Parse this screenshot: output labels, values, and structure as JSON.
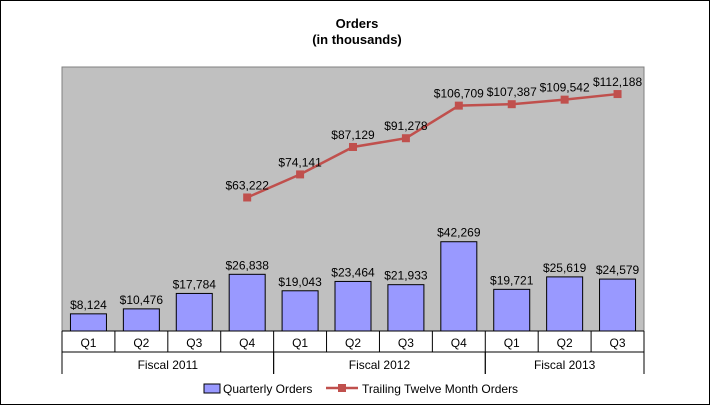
{
  "chart_data": {
    "type": "bar",
    "title": "Orders",
    "subtitle": "(in thousands)",
    "categories": [
      "Q1",
      "Q2",
      "Q3",
      "Q4",
      "Q1",
      "Q2",
      "Q3",
      "Q4",
      "Q1",
      "Q2",
      "Q3"
    ],
    "groups": [
      {
        "label": "Fiscal 2011",
        "span": 4
      },
      {
        "label": "Fiscal 2012",
        "span": 4
      },
      {
        "label": "Fiscal 2013",
        "span": 3
      }
    ],
    "series": [
      {
        "name": "Quarterly Orders",
        "kind": "bar",
        "color": "#9999ff",
        "values": [
          8124,
          10476,
          17784,
          26838,
          19043,
          23464,
          21933,
          42269,
          19721,
          25619,
          24579
        ],
        "labels": [
          "$8,124",
          "$10,476",
          "$17,784",
          "$26,838",
          "$19,043",
          "$23,464",
          "$21,933",
          "$42,269",
          "$19,721",
          "$25,619",
          "$24,579"
        ]
      },
      {
        "name": "Trailing Twelve Month Orders",
        "kind": "line",
        "color": "#c0504d",
        "values": [
          null,
          null,
          null,
          63222,
          74141,
          87129,
          91278,
          106709,
          107387,
          109542,
          112188
        ],
        "labels": [
          null,
          null,
          null,
          "$63,222",
          "$74,141",
          "$87,129",
          "$91,278",
          "$106,709",
          "$107,387",
          "$109,542",
          "$112,188"
        ]
      }
    ],
    "ylim": [
      0,
      125000
    ],
    "plot_background": "#c0c0c0",
    "grid": false,
    "legend": "bottom"
  }
}
